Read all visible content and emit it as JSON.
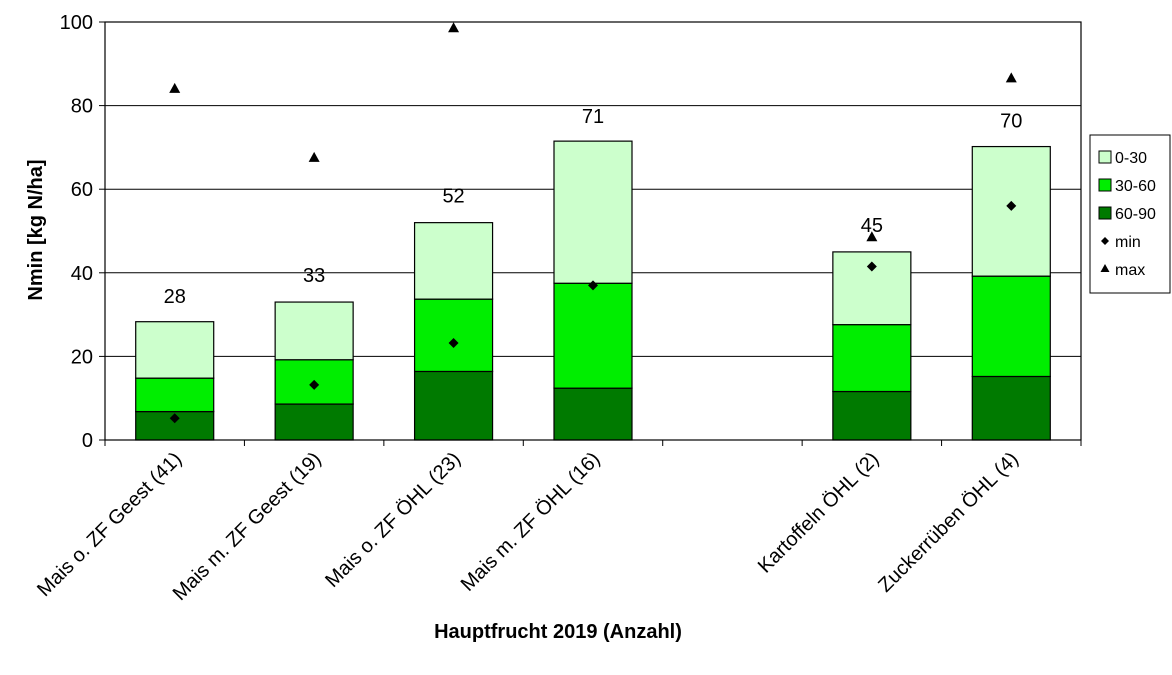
{
  "chart_data": {
    "type": "bar",
    "stacked": true,
    "xlabel": "Hauptfrucht 2019 (Anzahl)",
    "ylabel": "Nmin [kg N/ha]",
    "ylim": [
      0,
      100
    ],
    "yticks": [
      0,
      20,
      40,
      60,
      80,
      100
    ],
    "grid": true,
    "legend_position": "right",
    "categories": [
      "Mais o. ZF Geest (41)",
      "Mais m. ZF Geest (19)",
      "Mais o. ZF ÖHL (23)",
      "Mais m. ZF ÖHL (16)",
      "",
      "Kartoffeln ÖHL (2)",
      "Zuckerrüben ÖHL (4)"
    ],
    "series": [
      {
        "name": "60-90",
        "color": "#007a00",
        "values": [
          6.8,
          8.6,
          16.4,
          12.4,
          null,
          11.6,
          15.2
        ]
      },
      {
        "name": "30-60",
        "color": "#00ee00",
        "values": [
          8.0,
          10.6,
          17.3,
          25.1,
          null,
          16.0,
          24.0
        ]
      },
      {
        "name": "0-30",
        "color": "#ccffcc",
        "values": [
          13.5,
          13.8,
          18.3,
          34.0,
          null,
          17.4,
          31.0
        ]
      }
    ],
    "totals": [
      28,
      33,
      52,
      71,
      null,
      45,
      70
    ],
    "total_labels": [
      "28",
      "33",
      "52",
      "71",
      "",
      "45",
      "70"
    ],
    "markers": [
      {
        "name": "min",
        "symbol": "diamond",
        "values": [
          5.2,
          13.2,
          23.2,
          37.0,
          null,
          41.5,
          56.0
        ]
      },
      {
        "name": "max",
        "symbol": "triangle",
        "values": [
          84,
          67.5,
          98.5,
          null,
          null,
          48.5,
          86.5
        ]
      }
    ],
    "legend": [
      "0-30",
      "30-60",
      "60-90",
      "min",
      "max"
    ]
  }
}
